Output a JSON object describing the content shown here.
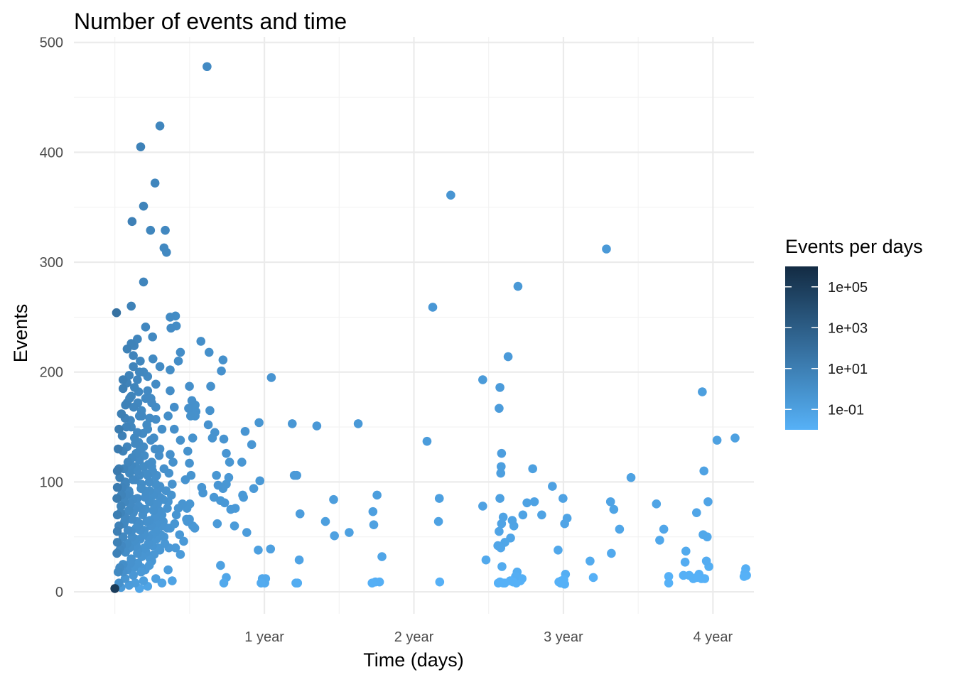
{
  "chart_data": {
    "type": "scatter",
    "title": "Number of events and time",
    "xlabel": "Time (days)",
    "ylabel": "Events",
    "xlim": [
      -100,
      1560
    ],
    "ylim": [
      -20,
      505
    ],
    "x_ticks": [
      {
        "value": 365,
        "label": "1 year"
      },
      {
        "value": 730,
        "label": "2 year"
      },
      {
        "value": 1095,
        "label": "3 year"
      },
      {
        "value": 1460,
        "label": "4 year"
      }
    ],
    "x_minor": [
      0,
      182.5,
      547.5,
      912.5,
      1277.5
    ],
    "y_ticks": [
      0,
      100,
      200,
      300,
      400,
      500
    ],
    "y_minor": [
      50,
      150,
      250,
      350,
      450
    ],
    "legend": {
      "title": "Events per days",
      "scale": "log10",
      "range": [
        0.01,
        1000000
      ],
      "ticks": [
        {
          "value": 100000,
          "label": "1e+05"
        },
        {
          "value": 1000,
          "label": "1e+03"
        },
        {
          "value": 10,
          "label": "1e+01"
        },
        {
          "value": 0.1,
          "label": "1e-01"
        }
      ],
      "color_low": "#56B1F7",
      "color_high": "#132B43"
    },
    "points": [
      [
        225,
        478
      ],
      [
        110,
        424
      ],
      [
        63,
        405
      ],
      [
        98,
        372
      ],
      [
        70,
        351
      ],
      [
        42,
        337
      ],
      [
        87,
        329
      ],
      [
        123,
        329
      ],
      [
        120,
        313
      ],
      [
        126,
        309
      ],
      [
        70,
        282
      ],
      [
        4,
        254
      ],
      [
        40,
        260
      ],
      [
        148,
        251
      ],
      [
        135,
        250
      ],
      [
        150,
        242
      ],
      [
        137,
        240
      ],
      [
        75,
        241
      ],
      [
        92,
        232
      ],
      [
        55,
        230
      ],
      [
        40,
        226
      ],
      [
        47,
        224
      ],
      [
        30,
        221
      ],
      [
        45,
        215
      ],
      [
        93,
        212
      ],
      [
        160,
        218
      ],
      [
        155,
        210
      ],
      [
        110,
        205
      ],
      [
        135,
        202
      ],
      [
        60,
        200
      ],
      [
        70,
        200
      ],
      [
        35,
        197
      ],
      [
        20,
        193
      ],
      [
        55,
        193
      ],
      [
        100,
        189
      ],
      [
        80,
        183
      ],
      [
        135,
        183
      ],
      [
        40,
        178
      ],
      [
        75,
        176
      ],
      [
        90,
        172
      ],
      [
        30,
        172
      ],
      [
        65,
        165
      ],
      [
        100,
        168
      ],
      [
        145,
        168
      ],
      [
        60,
        160
      ],
      [
        100,
        157
      ],
      [
        130,
        160
      ],
      [
        25,
        158
      ],
      [
        85,
        158
      ],
      [
        40,
        150
      ],
      [
        80,
        148
      ],
      [
        115,
        148
      ],
      [
        145,
        148
      ],
      [
        10,
        148
      ],
      [
        55,
        145
      ],
      [
        160,
        138
      ],
      [
        95,
        140
      ],
      [
        50,
        135
      ],
      [
        30,
        132
      ],
      [
        70,
        132
      ],
      [
        110,
        130
      ],
      [
        135,
        125
      ],
      [
        20,
        128
      ],
      [
        60,
        120
      ],
      [
        90,
        118
      ],
      [
        40,
        115
      ],
      [
        120,
        112
      ],
      [
        10,
        112
      ],
      [
        75,
        108
      ],
      [
        100,
        105
      ],
      [
        50,
        102
      ],
      [
        25,
        100
      ],
      [
        140,
        98
      ],
      [
        65,
        98
      ],
      [
        110,
        96
      ],
      [
        85,
        92
      ],
      [
        35,
        90
      ],
      [
        5,
        85
      ],
      [
        55,
        85
      ],
      [
        130,
        82
      ],
      [
        95,
        80
      ],
      [
        15,
        78
      ],
      [
        75,
        75
      ],
      [
        45,
        72
      ],
      [
        115,
        70
      ],
      [
        150,
        70
      ],
      [
        25,
        68
      ],
      [
        85,
        65
      ],
      [
        60,
        62
      ],
      [
        10,
        60
      ],
      [
        135,
        58
      ],
      [
        100,
        55
      ],
      [
        40,
        55
      ],
      [
        70,
        52
      ],
      [
        20,
        50
      ],
      [
        120,
        50
      ],
      [
        50,
        48
      ],
      [
        90,
        45
      ],
      [
        30,
        44
      ],
      [
        75,
        40
      ],
      [
        110,
        38
      ],
      [
        5,
        35
      ],
      [
        55,
        35
      ],
      [
        40,
        30
      ],
      [
        90,
        28
      ],
      [
        20,
        25
      ],
      [
        65,
        22
      ],
      [
        130,
        20
      ],
      [
        8,
        18
      ],
      [
        45,
        15
      ],
      [
        100,
        12
      ],
      [
        25,
        12
      ],
      [
        70,
        10
      ],
      [
        140,
        10
      ],
      [
        10,
        8
      ],
      [
        50,
        8
      ],
      [
        115,
        8
      ],
      [
        35,
        6
      ],
      [
        80,
        5
      ],
      [
        0,
        3
      ],
      [
        15,
        4
      ],
      [
        60,
        3
      ],
      [
        18,
        95
      ],
      [
        28,
        88
      ],
      [
        38,
        80
      ],
      [
        48,
        75
      ],
      [
        58,
        78
      ],
      [
        68,
        70
      ],
      [
        78,
        64
      ],
      [
        88,
        60
      ],
      [
        98,
        68
      ],
      [
        108,
        74
      ],
      [
        22,
        62
      ],
      [
        32,
        56
      ],
      [
        42,
        66
      ],
      [
        52,
        58
      ],
      [
        62,
        48
      ],
      [
        72,
        56
      ],
      [
        82,
        44
      ],
      [
        92,
        52
      ],
      [
        102,
        62
      ],
      [
        112,
        66
      ],
      [
        14,
        72
      ],
      [
        24,
        82
      ],
      [
        34,
        92
      ],
      [
        44,
        102
      ],
      [
        54,
        110
      ],
      [
        64,
        94
      ],
      [
        74,
        86
      ],
      [
        84,
        100
      ],
      [
        94,
        88
      ],
      [
        104,
        92
      ],
      [
        16,
        42
      ],
      [
        26,
        36
      ],
      [
        36,
        40
      ],
      [
        46,
        46
      ],
      [
        56,
        38
      ],
      [
        66,
        32
      ],
      [
        76,
        36
      ],
      [
        86,
        30
      ],
      [
        96,
        34
      ],
      [
        106,
        40
      ],
      [
        12,
        104
      ],
      [
        22,
        112
      ],
      [
        32,
        118
      ],
      [
        42,
        122
      ],
      [
        52,
        126
      ],
      [
        62,
        130
      ],
      [
        72,
        124
      ],
      [
        82,
        116
      ],
      [
        92,
        110
      ],
      [
        102,
        106
      ],
      [
        118,
        84
      ],
      [
        128,
        76
      ],
      [
        138,
        88
      ],
      [
        118,
        64
      ],
      [
        128,
        58
      ],
      [
        146,
        62
      ],
      [
        155,
        76
      ],
      [
        165,
        80
      ],
      [
        175,
        66
      ],
      [
        158,
        52
      ],
      [
        168,
        46
      ],
      [
        148,
        40
      ],
      [
        160,
        34
      ],
      [
        125,
        92
      ],
      [
        132,
        108
      ],
      [
        142,
        118
      ],
      [
        18,
        142
      ],
      [
        28,
        150
      ],
      [
        38,
        156
      ],
      [
        48,
        140
      ],
      [
        58,
        136
      ],
      [
        68,
        144
      ],
      [
        78,
        152
      ],
      [
        88,
        138
      ],
      [
        98,
        130
      ],
      [
        108,
        124
      ],
      [
        6,
        110
      ],
      [
        6,
        95
      ],
      [
        6,
        70
      ],
      [
        6,
        55
      ],
      [
        6,
        45
      ],
      [
        12,
        38
      ],
      [
        12,
        22
      ],
      [
        20,
        18
      ],
      [
        30,
        20
      ],
      [
        38,
        26
      ],
      [
        46,
        22
      ],
      [
        56,
        26
      ],
      [
        64,
        18
      ],
      [
        74,
        20
      ],
      [
        84,
        24
      ],
      [
        8,
        130
      ],
      [
        16,
        162
      ],
      [
        26,
        170
      ],
      [
        36,
        176
      ],
      [
        46,
        168
      ],
      [
        56,
        172
      ],
      [
        66,
        160
      ],
      [
        20,
        185
      ],
      [
        30,
        190
      ],
      [
        48,
        186
      ],
      [
        45,
        205
      ],
      [
        62,
        210
      ],
      [
        80,
        196
      ],
      [
        58,
        182
      ],
      [
        88,
        176
      ],
      [
        50,
        114
      ],
      [
        60,
        106
      ],
      [
        70,
        114
      ],
      [
        80,
        106
      ],
      [
        90,
        114
      ],
      [
        100,
        98
      ],
      [
        110,
        86
      ],
      [
        36,
        108
      ],
      [
        26,
        98
      ],
      [
        16,
        88
      ],
      [
        44,
        84
      ],
      [
        34,
        74
      ],
      [
        24,
        64
      ],
      [
        54,
        64
      ],
      [
        64,
        76
      ],
      [
        74,
        92
      ],
      [
        84,
        82
      ],
      [
        94,
        74
      ],
      [
        104,
        80
      ],
      [
        114,
        60
      ],
      [
        42,
        50
      ],
      [
        52,
        42
      ],
      [
        62,
        56
      ],
      [
        72,
        40
      ],
      [
        82,
        50
      ],
      [
        92,
        42
      ],
      [
        102,
        48
      ],
      [
        112,
        52
      ],
      [
        122,
        44
      ],
      [
        132,
        40
      ],
      [
        188,
        174
      ],
      [
        185,
        160
      ],
      [
        180,
        167
      ],
      [
        182,
        187
      ],
      [
        190,
        140
      ],
      [
        178,
        128
      ],
      [
        182,
        117
      ],
      [
        186,
        106
      ],
      [
        183,
        80
      ],
      [
        176,
        76
      ],
      [
        177,
        64
      ],
      [
        182,
        66
      ],
      [
        190,
        60
      ],
      [
        195,
        58
      ],
      [
        172,
        102
      ],
      [
        196,
        170
      ],
      [
        196,
        160
      ],
      [
        198,
        164
      ],
      [
        210,
        228
      ],
      [
        212,
        95
      ],
      [
        215,
        90
      ],
      [
        230,
        218
      ],
      [
        234,
        187
      ],
      [
        238,
        140
      ],
      [
        228,
        152
      ],
      [
        244,
        145
      ],
      [
        232,
        165
      ],
      [
        260,
        201
      ],
      [
        264,
        211
      ],
      [
        266,
        139
      ],
      [
        272,
        126
      ],
      [
        280,
        118
      ],
      [
        248,
        106
      ],
      [
        242,
        86
      ],
      [
        258,
        83
      ],
      [
        268,
        81
      ],
      [
        252,
        97
      ],
      [
        272,
        98
      ],
      [
        278,
        104
      ],
      [
        264,
        94
      ],
      [
        250,
        62
      ],
      [
        258,
        24
      ],
      [
        266,
        8
      ],
      [
        272,
        13
      ],
      [
        283,
        75
      ],
      [
        292,
        60
      ],
      [
        294,
        76
      ],
      [
        310,
        118
      ],
      [
        312,
        88
      ],
      [
        314,
        86
      ],
      [
        322,
        54
      ],
      [
        318,
        146
      ],
      [
        334,
        134
      ],
      [
        339,
        94
      ],
      [
        352,
        154
      ],
      [
        354,
        101
      ],
      [
        357,
        8
      ],
      [
        360,
        12
      ],
      [
        366,
        8
      ],
      [
        365,
        10
      ],
      [
        368,
        12
      ],
      [
        350,
        38
      ],
      [
        382,
        195
      ],
      [
        380,
        39
      ],
      [
        433,
        153
      ],
      [
        438,
        106
      ],
      [
        444,
        106
      ],
      [
        452,
        71
      ],
      [
        450,
        29
      ],
      [
        442,
        8
      ],
      [
        446,
        8
      ],
      [
        493,
        151
      ],
      [
        514,
        64
      ],
      [
        534,
        84
      ],
      [
        536,
        51
      ],
      [
        594,
        153
      ],
      [
        572,
        54
      ],
      [
        630,
        73
      ],
      [
        640,
        88
      ],
      [
        632,
        61
      ],
      [
        652,
        32
      ],
      [
        636,
        9
      ],
      [
        646,
        9
      ],
      [
        628,
        8
      ],
      [
        762,
        137
      ],
      [
        790,
        64
      ],
      [
        792,
        85
      ],
      [
        793,
        9
      ],
      [
        776,
        259
      ],
      [
        820,
        361
      ],
      [
        898,
        193
      ],
      [
        940,
        186
      ],
      [
        938,
        167
      ],
      [
        944,
        126
      ],
      [
        943,
        114
      ],
      [
        942,
        108
      ],
      [
        940,
        85
      ],
      [
        944,
        62
      ],
      [
        948,
        68
      ],
      [
        952,
        45
      ],
      [
        938,
        55
      ],
      [
        935,
        42
      ],
      [
        942,
        40
      ],
      [
        945,
        23
      ],
      [
        948,
        8
      ],
      [
        952,
        8
      ],
      [
        940,
        9
      ],
      [
        936,
        8
      ],
      [
        898,
        78
      ],
      [
        906,
        29
      ],
      [
        960,
        214
      ],
      [
        970,
        65
      ],
      [
        966,
        49
      ],
      [
        974,
        60
      ],
      [
        978,
        14
      ],
      [
        986,
        12
      ],
      [
        994,
        12
      ],
      [
        965,
        10
      ],
      [
        972,
        9
      ],
      [
        980,
        8
      ],
      [
        982,
        18
      ],
      [
        990,
        10
      ],
      [
        984,
        278
      ],
      [
        996,
        70
      ],
      [
        1006,
        81
      ],
      [
        1020,
        112
      ],
      [
        1024,
        82
      ],
      [
        1042,
        70
      ],
      [
        1068,
        96
      ],
      [
        1082,
        38
      ],
      [
        1094,
        85
      ],
      [
        1098,
        62
      ],
      [
        1104,
        67
      ],
      [
        1100,
        16
      ],
      [
        1090,
        10
      ],
      [
        1088,
        8
      ],
      [
        1084,
        9
      ],
      [
        1092,
        8
      ],
      [
        1098,
        7
      ],
      [
        1096,
        11
      ],
      [
        1160,
        28
      ],
      [
        1168,
        13
      ],
      [
        1200,
        312
      ],
      [
        1210,
        82
      ],
      [
        1218,
        75
      ],
      [
        1212,
        35
      ],
      [
        1232,
        57
      ],
      [
        1260,
        104
      ],
      [
        1322,
        80
      ],
      [
        1330,
        47
      ],
      [
        1340,
        57
      ],
      [
        1352,
        14
      ],
      [
        1352,
        8
      ],
      [
        1388,
        15
      ],
      [
        1392,
        27
      ],
      [
        1394,
        37
      ],
      [
        1402,
        15
      ],
      [
        1412,
        12
      ],
      [
        1420,
        72
      ],
      [
        1420,
        13
      ],
      [
        1426,
        16
      ],
      [
        1434,
        182
      ],
      [
        1436,
        52
      ],
      [
        1438,
        110
      ],
      [
        1446,
        50
      ],
      [
        1448,
        82
      ],
      [
        1450,
        23
      ],
      [
        1444,
        28
      ],
      [
        1432,
        12
      ],
      [
        1430,
        13
      ],
      [
        1440,
        12
      ],
      [
        1470,
        138
      ],
      [
        1514,
        140
      ],
      [
        1540,
        21
      ],
      [
        1538,
        17
      ],
      [
        1536,
        14
      ],
      [
        1542,
        15
      ]
    ]
  }
}
